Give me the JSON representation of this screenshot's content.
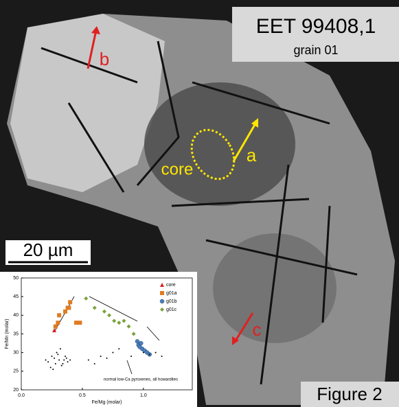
{
  "labels": {
    "sample": "EET 99408,1",
    "grain": "grain 01",
    "b": "b",
    "a": "a",
    "core": "core",
    "scale": "20 µm",
    "c": "c",
    "figure": "Figure 2"
  },
  "chart_data": {
    "type": "scatter",
    "x_label": "Fe/Mg (molar)",
    "y_label": "Fe/Mn (molar)",
    "annotation": "normal low-Ca pyroxenes, all howardites",
    "xlim": [
      0,
      1.4
    ],
    "ylim": [
      20,
      50
    ],
    "xticks": [
      {
        "value": 0,
        "label": "0.0"
      },
      {
        "value": 0.5,
        "label": "0.5"
      },
      {
        "value": 1,
        "label": "1.0"
      }
    ],
    "yticks": [
      20,
      25,
      30,
      35,
      40,
      45,
      50
    ],
    "legend": "upper right",
    "series": [
      {
        "name": "core",
        "color": "#e02020",
        "marker": "triangle",
        "x": [
          0.27
        ],
        "values": [
          36
        ]
      },
      {
        "name": "g01a",
        "color": "#e07b22",
        "marker": "square",
        "x": [
          0.28,
          0.3,
          0.31,
          0.36,
          0.38,
          0.4,
          0.39,
          0.45,
          0.48
        ],
        "values": [
          37,
          38,
          40,
          41,
          42,
          43.5,
          42,
          38,
          38
        ]
      },
      {
        "name": "g01b",
        "color": "#4a7fc1",
        "marker": "circle",
        "x": [
          0.95,
          0.96,
          0.98,
          0.97,
          0.99,
          1.01,
          1.03,
          1.05
        ],
        "values": [
          33,
          32,
          32.5,
          31.5,
          31,
          30.5,
          30,
          29.5
        ]
      },
      {
        "name": "g01c",
        "color": "#7aa23a",
        "marker": "diamond",
        "x": [
          0.53,
          0.6,
          0.68,
          0.72,
          0.76,
          0.8,
          0.84,
          0.88,
          0.92
        ],
        "values": [
          44.5,
          42,
          41,
          40,
          38.5,
          38,
          38.5,
          37,
          35
        ]
      },
      {
        "color": "#000000",
        "marker": "dot",
        "x": [
          0.2,
          0.22,
          0.25,
          0.27,
          0.28,
          0.3,
          0.31,
          0.33,
          0.35,
          0.36,
          0.38,
          0.4,
          0.24,
          0.29,
          0.34,
          0.26,
          0.32,
          0.37,
          0.55,
          0.6,
          0.65,
          0.7,
          0.75,
          0.8,
          0.9,
          1.0,
          1.05,
          1.1,
          1.15
        ],
        "values": [
          28,
          27.5,
          29,
          28.5,
          27,
          29.5,
          28,
          26.5,
          28,
          29,
          27.5,
          28,
          26,
          30,
          27,
          25.5,
          31,
          28.5,
          28,
          27,
          29,
          28.5,
          30,
          31,
          29,
          30,
          29.5,
          30,
          29
        ]
      }
    ]
  }
}
